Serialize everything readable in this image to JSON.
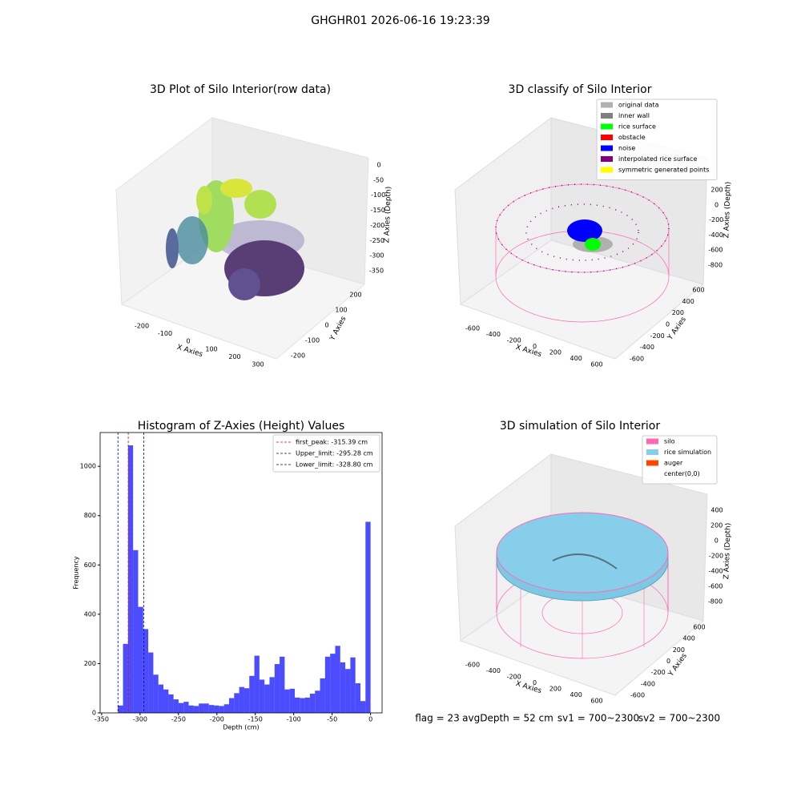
{
  "title": "GHGHR01 2026-06-16 19:23:39",
  "chart_data": [
    {
      "type": "scatter3d",
      "title": "3D Plot of Silo Interior(row data)",
      "xlabel": "X Axies",
      "ylabel": "Y Axies",
      "zlabel": "Z Axies (Depth)",
      "xticks": [
        -200,
        -100,
        0,
        100,
        200,
        300
      ],
      "yticks": [
        -200,
        -100,
        0,
        100,
        200
      ],
      "zticks": [
        0,
        -50,
        -100,
        -150,
        -200,
        -250,
        -300,
        -350
      ]
    },
    {
      "type": "scatter3d",
      "title": "3D classify of Silo Interior",
      "xlabel": "X Axies",
      "ylabel": "Y Axies",
      "zlabel": "Z Axies (Depth)",
      "xticks": [
        -600,
        -400,
        -200,
        0,
        200,
        400,
        600
      ],
      "yticks": [
        -600,
        -400,
        -200,
        0,
        200,
        400,
        600
      ],
      "zticks": [
        200,
        0,
        -200,
        -400,
        -600,
        -800
      ],
      "legend": [
        {
          "name": "original data",
          "color": "#b0b0b0"
        },
        {
          "name": "inner wall",
          "color": "#808080"
        },
        {
          "name": "rice surface",
          "color": "#00ff00"
        },
        {
          "name": "obstacle",
          "color": "#ff0000"
        },
        {
          "name": "noise",
          "color": "#0000ff"
        },
        {
          "name": "interpolated rice surface",
          "color": "#800080"
        },
        {
          "name": "symmetric generated points",
          "color": "#ffff00"
        }
      ]
    },
    {
      "type": "histogram",
      "title": "Histogram of Z-Axies (Height) Values",
      "xlabel": "Depth (cm)",
      "ylabel": "Frequency",
      "color": "#0000ff",
      "alpha": 0.7,
      "bins": [
        -328.8,
        -322.22,
        -315.65,
        -309.07,
        -302.5,
        -295.92,
        -289.34,
        -282.77,
        -276.19,
        -269.62,
        -263.04,
        -256.46,
        -249.89,
        -243.31,
        -236.74,
        -230.16,
        -223.58,
        -217.01,
        -210.43,
        -203.86,
        -197.28,
        -190.7,
        -184.13,
        -177.55,
        -170.98,
        -164.4,
        -157.82,
        -151.25,
        -144.67,
        -138.1,
        -131.52,
        -124.94,
        -118.37,
        -111.79,
        -105.22,
        -98.64,
        -92.06,
        -85.49,
        -78.91,
        -72.34,
        -65.76,
        -59.18,
        -52.61,
        -46.03,
        -39.46,
        -32.88,
        -26.3,
        -19.73,
        -13.15,
        -6.58,
        0
      ],
      "values": [
        30,
        280,
        1085,
        660,
        430,
        340,
        245,
        155,
        115,
        95,
        75,
        55,
        40,
        45,
        30,
        28,
        38,
        38,
        32,
        30,
        28,
        35,
        60,
        80,
        105,
        100,
        150,
        232,
        135,
        115,
        145,
        198,
        228,
        95,
        98,
        62,
        60,
        62,
        78,
        90,
        140,
        228,
        240,
        272,
        205,
        178,
        225,
        120,
        48,
        775
      ],
      "xlim": [
        -352,
        15
      ],
      "ylim": [
        0,
        1137
      ],
      "xticks": [
        -350,
        -300,
        -250,
        -200,
        -150,
        -100,
        -50,
        0
      ],
      "yticks": [
        0,
        200,
        400,
        600,
        800,
        1000
      ],
      "lines": [
        {
          "value": -315.39,
          "label": "first_peak: -315.39 cm",
          "color": "#ff0000"
        },
        {
          "value": -295.28,
          "label": "Upper_limit: -295.28 cm",
          "color": "#0000aa"
        },
        {
          "value": -328.8,
          "label": "Lower_limit: -328.80 cm",
          "color": "#0000aa"
        }
      ],
      "legend_position": "upper right"
    },
    {
      "type": "surface3d",
      "title": "3D simulation of Silo Interior",
      "xlabel": "X Axies",
      "ylabel": "Y Axies",
      "zlabel": "Z Axies (Depth)",
      "xticks": [
        -600,
        -400,
        -200,
        0,
        200,
        400,
        600
      ],
      "yticks": [
        -600,
        -400,
        -200,
        0,
        200,
        400,
        600
      ],
      "zticks": [
        400,
        200,
        0,
        -200,
        -400,
        -600,
        -800
      ],
      "legend": [
        {
          "name": "silo",
          "color": "#ff69b4"
        },
        {
          "name": "rice simulation",
          "color": "#87ceeb"
        },
        {
          "name": "auger",
          "color": "#ff4500"
        },
        {
          "name": "center(0,0)",
          "color": "#ffffff"
        }
      ]
    }
  ],
  "footer": [
    "flag = 23",
    "avgDepth = 52 cm",
    "sv1 = 700~2300",
    "sv2 = 700~2300"
  ]
}
